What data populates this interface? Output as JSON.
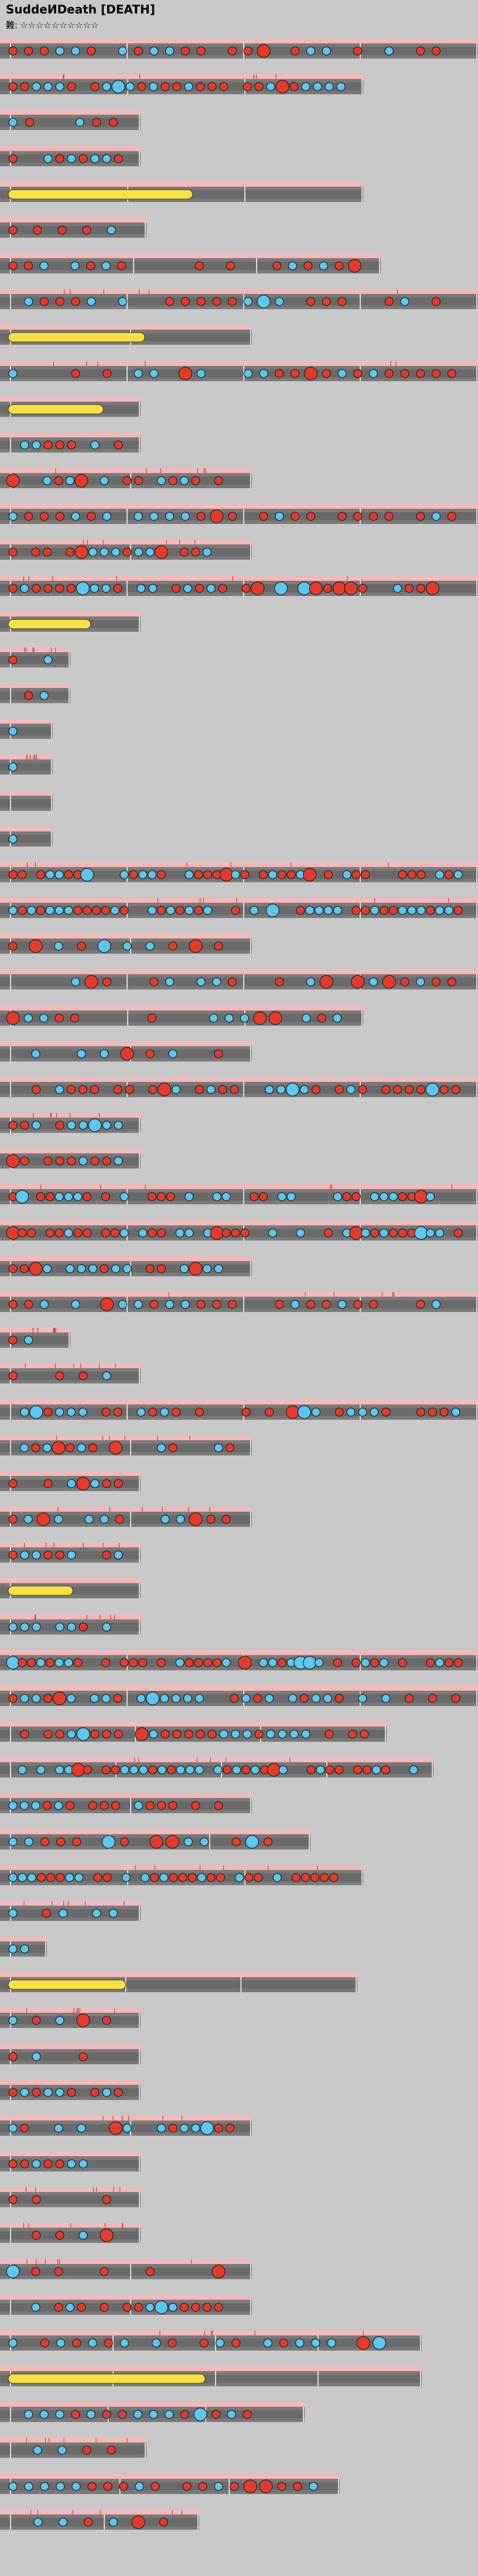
{
  "header": {
    "title": "SuddeИDeath [DEATH]",
    "difficulty_label": "難:",
    "stars": "☆☆☆☆☆☆☆☆☆☆"
  }
}
